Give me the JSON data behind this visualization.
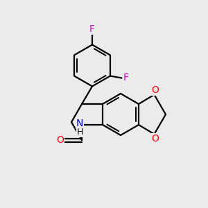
{
  "background_color": "#ebebeb",
  "bond_color": "#000000",
  "atom_colors": {
    "F": "#cc00cc",
    "O": "#ff0000",
    "N": "#0000cc",
    "H": "#000000"
  },
  "figsize": [
    3.0,
    3.0
  ],
  "dpi": 100
}
